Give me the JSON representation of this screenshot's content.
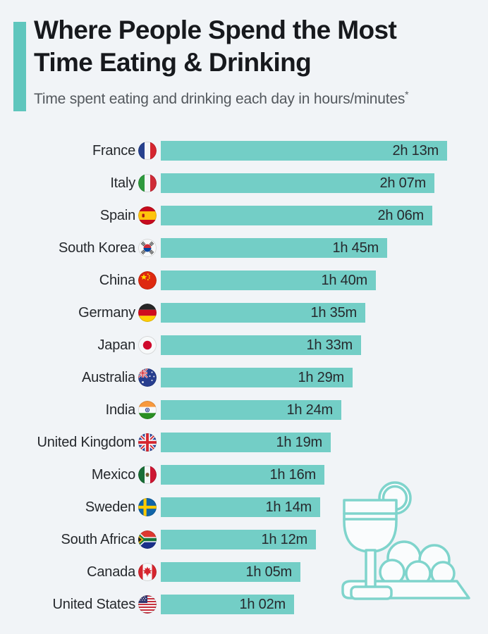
{
  "header": {
    "title_line1": "Where People Spend the Most",
    "title_line2": "Time Eating & Drinking",
    "subtitle": "Time spent eating and drinking each day in hours/minutes",
    "footnote_marker": "*"
  },
  "colors": {
    "background": "#f1f4f7",
    "bar": "#73cec6",
    "accent_bar": "#5fc6bd",
    "title_text": "#17191d",
    "subtitle_text": "#53585d",
    "value_text": "#26292d",
    "illustration_stroke": "#7fd4cc"
  },
  "illustration": "drink-glass-and-food-tray",
  "chart_data": {
    "type": "bar",
    "orientation": "horizontal",
    "title": "Where People Spend the Most Time Eating & Drinking",
    "subtitle": "Time spent eating and drinking each day in hours/minutes*",
    "unit": "hours/minutes per day",
    "max_minutes": 133,
    "categories": [
      "France",
      "Italy",
      "Spain",
      "South Korea",
      "China",
      "Germany",
      "Japan",
      "Australia",
      "India",
      "United Kingdom",
      "Mexico",
      "Sweden",
      "South Africa",
      "Canada",
      "United States"
    ],
    "values_minutes": [
      133,
      127,
      126,
      105,
      100,
      95,
      93,
      89,
      84,
      79,
      76,
      74,
      72,
      65,
      62
    ],
    "value_labels": [
      "2h 13m",
      "2h 07m",
      "2h 06m",
      "1h 45m",
      "1h 40m",
      "1h 35m",
      "1h 33m",
      "1h 29m",
      "1h 24m",
      "1h 19m",
      "1h 16m",
      "1h 14m",
      "1h 12m",
      "1h 05m",
      "1h 02m"
    ],
    "rows": [
      {
        "country": "France",
        "flag": "france",
        "label": "2h 13m",
        "minutes": 133
      },
      {
        "country": "Italy",
        "flag": "italy",
        "label": "2h 07m",
        "minutes": 127
      },
      {
        "country": "Spain",
        "flag": "spain",
        "label": "2h 06m",
        "minutes": 126
      },
      {
        "country": "South Korea",
        "flag": "southkorea",
        "label": "1h 45m",
        "minutes": 105
      },
      {
        "country": "China",
        "flag": "china",
        "label": "1h 40m",
        "minutes": 100
      },
      {
        "country": "Germany",
        "flag": "germany",
        "label": "1h 35m",
        "minutes": 95
      },
      {
        "country": "Japan",
        "flag": "japan",
        "label": "1h 33m",
        "minutes": 93
      },
      {
        "country": "Australia",
        "flag": "australia",
        "label": "1h 29m",
        "minutes": 89
      },
      {
        "country": "India",
        "flag": "india",
        "label": "1h 24m",
        "minutes": 84
      },
      {
        "country": "United Kingdom",
        "flag": "uk",
        "label": "1h 19m",
        "minutes": 79
      },
      {
        "country": "Mexico",
        "flag": "mexico",
        "label": "1h 16m",
        "minutes": 76
      },
      {
        "country": "Sweden",
        "flag": "sweden",
        "label": "1h 14m",
        "minutes": 74
      },
      {
        "country": "South Africa",
        "flag": "southafrica",
        "label": "1h 12m",
        "minutes": 72
      },
      {
        "country": "Canada",
        "flag": "canada",
        "label": "1h 05m",
        "minutes": 65
      },
      {
        "country": "United States",
        "flag": "us",
        "label": "1h 02m",
        "minutes": 62
      }
    ]
  }
}
